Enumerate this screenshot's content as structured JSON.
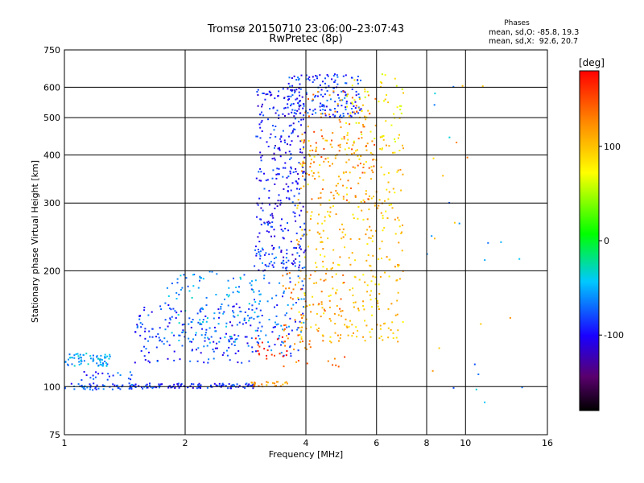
{
  "chart_data": {
    "type": "scatter",
    "title": "Tromsø 20150710 23:06:00–23:07:43",
    "subtitle": "RwPretec (8p)",
    "xlabel": "Frequency [MHz]",
    "ylabel": "Stationary phase Virtual Height [km]",
    "xscale": "log",
    "yscale": "log",
    "xlim": [
      1,
      16
    ],
    "ylim": [
      75,
      750
    ],
    "xticks": [
      1,
      2,
      4,
      6,
      8,
      10,
      16
    ],
    "xtick_labels": [
      "1",
      "2",
      "4",
      "6",
      "8",
      "10",
      "16"
    ],
    "yticks": [
      75,
      100,
      200,
      300,
      400,
      500,
      600,
      750
    ],
    "ytick_labels": [
      "75",
      "100",
      "200",
      "300",
      "400",
      "500",
      "600",
      "750"
    ],
    "grid": true,
    "stats": {
      "heading": "Phases",
      "line_o": "mean, sd,O: -85.8, 19.3",
      "line_x": "mean, sd,X:  92.6, 20.7"
    },
    "colorbar": {
      "label": "[deg]",
      "range": [
        -180,
        180
      ],
      "ticks": [
        100,
        0,
        -100
      ],
      "tick_labels": [
        "100",
        "0",
        "-100"
      ],
      "colormap": "rainbow (black-purple-blue-cyan-green-yellow-orange-red)"
    },
    "point_groups": [
      {
        "f": [
          1.0,
          1.6
        ],
        "h": [
          98,
          102
        ],
        "phase": -80,
        "n": 60
      },
      {
        "f": [
          1.6,
          3.0
        ],
        "h": [
          99,
          102
        ],
        "phase": -90,
        "n": 100
      },
      {
        "f": [
          1.0,
          1.3
        ],
        "h": [
          113,
          122
        ],
        "phase": -55,
        "n": 70
      },
      {
        "f": [
          1.1,
          1.5
        ],
        "h": [
          104,
          110
        ],
        "phase": -80,
        "n": 20
      },
      {
        "f": [
          1.5,
          3.0
        ],
        "h": [
          115,
          165
        ],
        "phase": -85,
        "n": 180
      },
      {
        "f": [
          1.8,
          3.0
        ],
        "h": [
          130,
          200
        ],
        "phase": -55,
        "n": 100
      },
      {
        "f": [
          2.9,
          3.6
        ],
        "h": [
          100,
          103
        ],
        "phase": 120,
        "n": 25
      },
      {
        "f": [
          3.0,
          4.0
        ],
        "h": [
          200,
          600
        ],
        "phase": -95,
        "n": 320
      },
      {
        "f": [
          3.6,
          5.5
        ],
        "h": [
          500,
          650
        ],
        "phase": -85,
        "n": 160
      },
      {
        "f": [
          2.9,
          4.0
        ],
        "h": [
          120,
          230
        ],
        "phase": -75,
        "n": 130
      },
      {
        "f": [
          3.8,
          7.0
        ],
        "h": [
          130,
          450
        ],
        "phase": 100,
        "n": 380
      },
      {
        "f": [
          3.5,
          5.0
        ],
        "h": [
          110,
          200
        ],
        "phase": 130,
        "n": 70
      },
      {
        "f": [
          3.9,
          6.0
        ],
        "h": [
          300,
          600
        ],
        "phase": 130,
        "n": 110
      },
      {
        "f": [
          5.0,
          7.0
        ],
        "h": [
          400,
          650
        ],
        "phase": 80,
        "n": 70
      },
      {
        "f": [
          3.0,
          3.6
        ],
        "h": [
          115,
          135
        ],
        "phase": 165,
        "n": 20
      },
      {
        "f": [
          8.0,
          14.0
        ],
        "h": [
          90,
          650
        ],
        "phase": -60,
        "n": 18
      },
      {
        "f": [
          8.0,
          14.0
        ],
        "h": [
          90,
          650
        ],
        "phase": 110,
        "n": 12
      }
    ]
  }
}
